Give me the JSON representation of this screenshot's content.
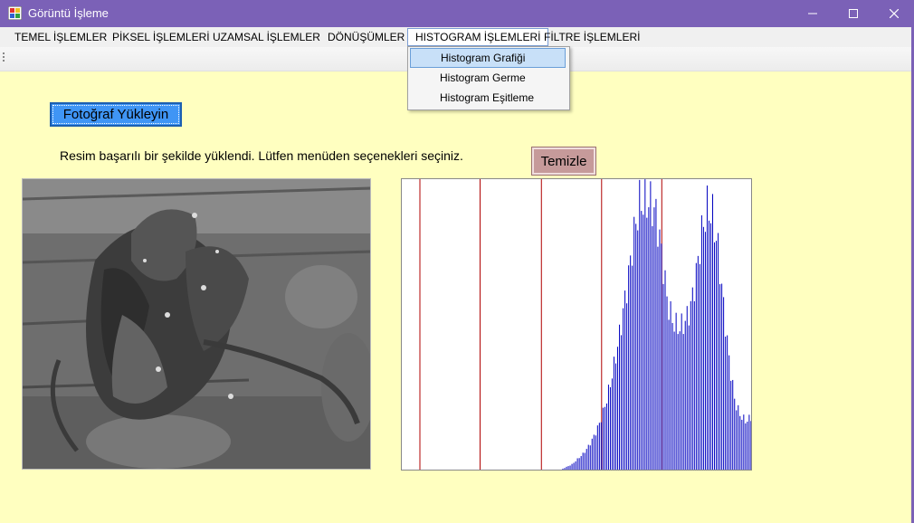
{
  "window": {
    "title": "Görüntü İşleme",
    "title_bar_color": "#7b61b7",
    "app_icon": "app-icon",
    "controls": [
      "minimize-icon",
      "maximize-icon",
      "close-icon"
    ]
  },
  "menu": {
    "items": [
      {
        "label": "TEMEL İŞLEMLER"
      },
      {
        "label": "PİKSEL İŞLEMLERİ"
      },
      {
        "label": "UZAMSAL İŞLEMLER"
      },
      {
        "label": "DÖNÜŞÜMLER"
      },
      {
        "label": "HISTOGRAM İŞLEMLERİ"
      },
      {
        "label": "FİLTRE İŞLEMLERİ"
      }
    ],
    "open_menu": {
      "items": [
        {
          "label": "Histogram Grafiği"
        },
        {
          "label": "Histogram Germe"
        },
        {
          "label": "Histogram Eşitleme"
        }
      ]
    }
  },
  "main": {
    "upload_button": "Fotoğraf Yükleyin",
    "status_text": "Resim başarılı bir şekilde yüklendi. Lütfen menüden seçenekleri seçiniz.",
    "clear_button": "Temizle",
    "background_color": "#ffffc0"
  },
  "chart_data": {
    "type": "bar",
    "bar_color": "#0000c0",
    "gridline_color": "#b00000",
    "x": [
      0,
      4,
      8,
      12,
      16,
      20,
      24,
      28,
      32,
      36,
      40,
      44,
      48,
      52,
      56,
      60,
      64,
      68,
      72,
      76,
      80,
      84,
      88,
      92,
      96,
      100,
      104,
      108,
      112,
      116,
      120,
      124,
      128,
      132,
      136,
      140,
      144,
      148,
      152,
      156,
      160,
      164,
      168,
      172,
      176,
      180,
      184,
      188,
      192,
      196,
      200,
      204,
      208,
      212,
      216,
      220,
      224,
      228,
      232,
      236,
      240,
      244,
      248,
      252,
      255
    ],
    "values": [
      0,
      0,
      0,
      0,
      0,
      0,
      0,
      0,
      0,
      0,
      0,
      0,
      0,
      0,
      0,
      0,
      0,
      0,
      0,
      0,
      0,
      0,
      0,
      0,
      0,
      0,
      1,
      2,
      4,
      6,
      9,
      13,
      18,
      25,
      34,
      45,
      58,
      72,
      88,
      100,
      100,
      100,
      95,
      80,
      62,
      55,
      53,
      55,
      60,
      72,
      88,
      98,
      95,
      82,
      60,
      40,
      25,
      20,
      18,
      20,
      19,
      18,
      20,
      24,
      25
    ],
    "ylim": [
      0,
      100
    ],
    "gridline_positions": [
      0,
      53,
      107,
      160,
      213
    ]
  }
}
